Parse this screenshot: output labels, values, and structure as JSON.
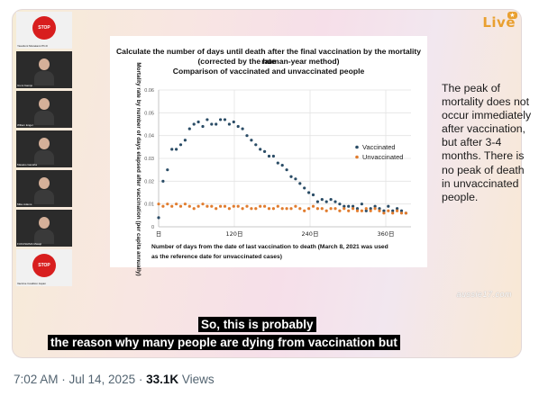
{
  "video": {
    "live_badge": "Live",
    "watermark": "aussie17.com",
    "participants": [
      {
        "name": "Yasufumi Murakami Ph.D",
        "kind": "logo",
        "logo_text": "STOP"
      },
      {
        "name": "Izumi Kamijo",
        "kind": "person"
      },
      {
        "name": "Willem Engel",
        "kind": "person"
      },
      {
        "name": "Masako Ganaha",
        "kind": "person"
      },
      {
        "name": "Mike Adams",
        "kind": "person"
      },
      {
        "name": "FUKUSHIMA Masaji",
        "kind": "person"
      },
      {
        "name": "Vaccine Coalition Japan",
        "kind": "logo",
        "logo_text": "STOP"
      }
    ]
  },
  "slide": {
    "title_line1": "Calculate the number of days until death after the final vaccination by the mortality rate",
    "title_line2": "(corrected by the human-year method)",
    "title_line3": "Comparison of vaccinated and unvaccinated people",
    "side_text": "The peak of mortality does not occur immediately after vaccination, but after 3-4 months. There is no peak of death in unvaccinated people."
  },
  "chart_data": {
    "type": "scatter",
    "ylabel": "Mortality rate by number of days elapsed after vaccination (per capita annually)",
    "xlabel_line1": "Number of days from the date of last vaccination to death (March 8, 2021 was used",
    "xlabel_line2": "as the reference date for unvaccinated cases)",
    "xlim": [
      0,
      400
    ],
    "ylim": [
      0,
      0.06
    ],
    "y_ticks": [
      "0",
      "0.01",
      "0.02",
      "0.03",
      "0.04",
      "0.05",
      "0.06"
    ],
    "x_ticks": [
      "日",
      "120日",
      "240日",
      "360日"
    ],
    "x_tick_values": [
      0,
      120,
      240,
      360
    ],
    "legend_position": "right",
    "series": [
      {
        "name": "Vaccinated",
        "color": "#2a4c66",
        "x": [
          0,
          7,
          14,
          21,
          28,
          35,
          42,
          49,
          56,
          63,
          70,
          77,
          84,
          91,
          98,
          105,
          112,
          119,
          126,
          133,
          140,
          147,
          154,
          161,
          168,
          175,
          182,
          189,
          196,
          203,
          210,
          217,
          224,
          231,
          238,
          245,
          252,
          259,
          266,
          273,
          280,
          287,
          294,
          301,
          308,
          315,
          322,
          329,
          336,
          343,
          350,
          357,
          364,
          371,
          378,
          385,
          392
        ],
        "y": [
          0.004,
          0.02,
          0.025,
          0.034,
          0.034,
          0.036,
          0.038,
          0.043,
          0.045,
          0.046,
          0.044,
          0.047,
          0.045,
          0.045,
          0.047,
          0.047,
          0.045,
          0.046,
          0.044,
          0.043,
          0.04,
          0.038,
          0.036,
          0.034,
          0.033,
          0.031,
          0.031,
          0.028,
          0.027,
          0.025,
          0.022,
          0.021,
          0.019,
          0.017,
          0.015,
          0.014,
          0.011,
          0.012,
          0.011,
          0.012,
          0.011,
          0.01,
          0.009,
          0.009,
          0.009,
          0.008,
          0.01,
          0.007,
          0.008,
          0.009,
          0.008,
          0.007,
          0.009,
          0.007,
          0.008,
          0.007,
          0.006
        ]
      },
      {
        "name": "Unvaccinated",
        "color": "#e17c2e",
        "x": [
          0,
          7,
          14,
          21,
          28,
          35,
          42,
          49,
          56,
          63,
          70,
          77,
          84,
          91,
          98,
          105,
          112,
          119,
          126,
          133,
          140,
          147,
          154,
          161,
          168,
          175,
          182,
          189,
          196,
          203,
          210,
          217,
          224,
          231,
          238,
          245,
          252,
          259,
          266,
          273,
          280,
          287,
          294,
          301,
          308,
          315,
          322,
          329,
          336,
          343,
          350,
          357,
          364,
          371,
          378,
          385,
          392
        ],
        "y": [
          0.01,
          0.009,
          0.01,
          0.009,
          0.01,
          0.009,
          0.01,
          0.009,
          0.008,
          0.009,
          0.01,
          0.009,
          0.009,
          0.008,
          0.009,
          0.009,
          0.008,
          0.009,
          0.009,
          0.008,
          0.009,
          0.008,
          0.008,
          0.009,
          0.009,
          0.008,
          0.008,
          0.009,
          0.008,
          0.008,
          0.008,
          0.009,
          0.008,
          0.007,
          0.008,
          0.009,
          0.008,
          0.008,
          0.007,
          0.008,
          0.008,
          0.007,
          0.008,
          0.007,
          0.008,
          0.007,
          0.007,
          0.008,
          0.007,
          0.008,
          0.007,
          0.006,
          0.007,
          0.006,
          0.007,
          0.006,
          0.006
        ]
      }
    ]
  },
  "captions": {
    "line1": "So, this is probably",
    "line2": "the reason why many people are dying from vaccination but"
  },
  "footer": {
    "timestamp": "7:02 AM · Jul 14, 2025 ·",
    "views_count": "33.1K",
    "views_label": "Views"
  }
}
